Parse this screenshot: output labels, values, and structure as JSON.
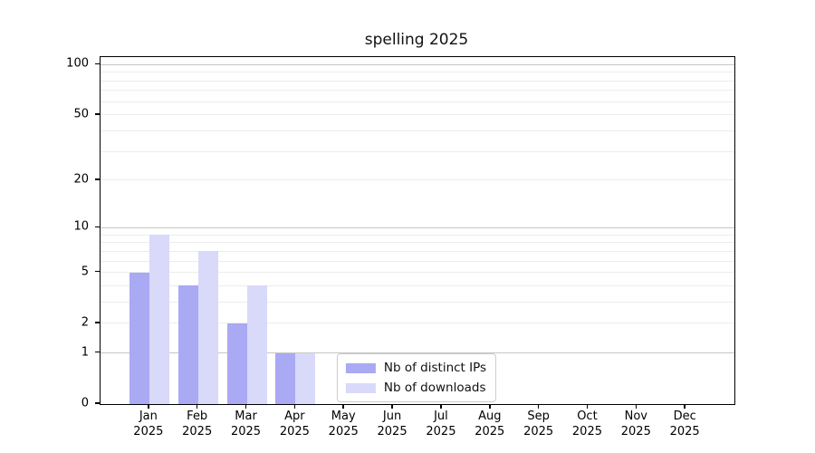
{
  "chart_data": {
    "type": "bar",
    "title": "spelling 2025",
    "categories": [
      "Jan",
      "Feb",
      "Mar",
      "Apr",
      "May",
      "Jun",
      "Jul",
      "Aug",
      "Sep",
      "Oct",
      "Nov",
      "Dec"
    ],
    "category_year": "2025",
    "series": [
      {
        "name": "Nb of distinct IPs",
        "color": "#a9a9f4",
        "values": [
          5,
          4,
          2,
          1,
          0,
          0,
          0,
          0,
          0,
          0,
          0,
          0
        ]
      },
      {
        "name": "Nb of downloads",
        "color": "#d9d9fa",
        "values": [
          9,
          7,
          4,
          1,
          0,
          0,
          0,
          0,
          0,
          0,
          0,
          0
        ]
      }
    ],
    "y_axis": {
      "scale": "log10(1+v)",
      "tick_labels": [
        0,
        1,
        2,
        5,
        10,
        20,
        50,
        100
      ],
      "max": 111,
      "major_gridlines": [
        1,
        10,
        100
      ],
      "minor_gridlines": [
        2,
        3,
        4,
        5,
        6,
        7,
        8,
        9,
        20,
        30,
        40,
        50,
        60,
        70,
        80,
        90
      ],
      "major_grid_color": "#c6c6c6",
      "minor_grid_color": "#ececec"
    },
    "x_axis": {
      "label_line2": "2025"
    },
    "legend": {
      "position": "lower center"
    }
  }
}
